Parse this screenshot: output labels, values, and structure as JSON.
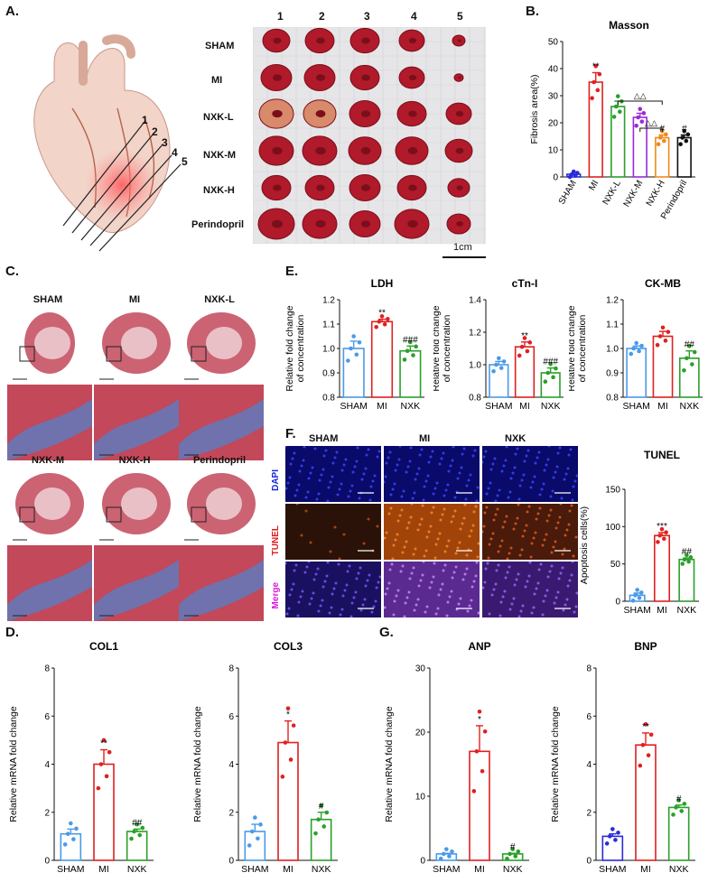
{
  "panels": {
    "A": {
      "letter": "A.",
      "slice_numbers": [
        "1",
        "2",
        "3",
        "4",
        "5"
      ],
      "col_numbers": [
        "1",
        "2",
        "3",
        "4",
        "5"
      ],
      "row_labels": [
        "SHAM",
        "MI",
        "NXK-L",
        "NXK-M",
        "NXK-H",
        "Perindopril"
      ],
      "scale": "1cm",
      "colors": {
        "tissue": "#b01a2a",
        "tissue_dark": "#7a0f1a",
        "mesh": "#e4e4e6",
        "heart": "#f2d4c8"
      }
    },
    "B": {
      "letter": "B."
    },
    "C": {
      "letter": "C.",
      "top_labels": [
        "SHAM",
        "MI",
        "NXK-L"
      ],
      "bottom_labels": [
        "NXK-M",
        "NXK-H",
        "Perindopril"
      ],
      "colors": {
        "muscle": "#c2485a",
        "collagen": "#5a7dc0"
      }
    },
    "D": {
      "letter": "D."
    },
    "E": {
      "letter": "E."
    },
    "F": {
      "letter": "F.",
      "col_labels": [
        "SHAM",
        "MI",
        "NXK"
      ],
      "row_labels": [
        "DAPI",
        "TUNEL",
        "Merge"
      ],
      "row_label_colors": [
        "#1a2ad8",
        "#e01a1a",
        "#d81ad8"
      ]
    },
    "G": {
      "letter": "G."
    }
  },
  "chart_data": [
    {
      "id": "masson",
      "type": "bar",
      "title": "Masson",
      "xlabel": "",
      "ylabel": "Fibrosis area(%)",
      "categories": [
        "SHAM",
        "MI",
        "NXK-L",
        "NXK-M",
        "NXK-H",
        "Perindopril"
      ],
      "values": [
        1,
        35,
        26,
        22,
        14.5,
        14.5
      ],
      "errors": [
        0,
        3.5,
        2,
        1.5,
        1,
        1
      ],
      "colors": [
        "#2a2ad8",
        "#e02020",
        "#2aa02a",
        "#9a2ad8",
        "#f08a1a",
        "#111111"
      ],
      "ylim": [
        0,
        50
      ],
      "yticks": [
        "0",
        "10",
        "20",
        "30",
        "40",
        "50"
      ],
      "annotations": [
        "",
        "**",
        "",
        "",
        "#",
        "#"
      ],
      "bracket_annotations": [
        "△△",
        "△△"
      ]
    },
    {
      "id": "ldh",
      "type": "bar",
      "title": "LDH",
      "xlabel": "",
      "ylabel": "Relative fold change of concentration",
      "categories": [
        "SHAM",
        "MI",
        "NXK"
      ],
      "values": [
        1.0,
        1.11,
        0.99
      ],
      "errors": [
        0.03,
        0.01,
        0.02
      ],
      "colors": [
        "#4a9ae8",
        "#e02020",
        "#2aa02a"
      ],
      "ylim": [
        0.8,
        1.2
      ],
      "yticks": [
        "0.8",
        "0.9",
        "1.0",
        "1.1",
        "1.2"
      ],
      "annotations": [
        "",
        "**",
        "###"
      ]
    },
    {
      "id": "ctni",
      "type": "bar",
      "title": "cTn-I",
      "xlabel": "",
      "ylabel": "Relative fold change of concentration",
      "categories": [
        "SHAM",
        "MI",
        "NXK"
      ],
      "values": [
        1.0,
        1.11,
        0.95
      ],
      "errors": [
        0.02,
        0.03,
        0.03
      ],
      "colors": [
        "#4a9ae8",
        "#e02020",
        "#2aa02a"
      ],
      "ylim": [
        0.8,
        1.4
      ],
      "yticks": [
        "0.8",
        "1.0",
        "1.2",
        "1.4"
      ],
      "annotations": [
        "",
        "**",
        "###"
      ]
    },
    {
      "id": "ckmb",
      "type": "bar",
      "title": "CK-MB",
      "xlabel": "",
      "ylabel": "Relative fold change of concentration",
      "categories": [
        "SHAM",
        "MI",
        "NXK"
      ],
      "values": [
        1.0,
        1.05,
        0.96
      ],
      "errors": [
        0.01,
        0.02,
        0.03
      ],
      "colors": [
        "#4a9ae8",
        "#e02020",
        "#2aa02a"
      ],
      "ylim": [
        0.8,
        1.2
      ],
      "yticks": [
        "0.8",
        "0.9",
        "1.0",
        "1.1",
        "1.2"
      ],
      "annotations": [
        "",
        "",
        "##"
      ]
    },
    {
      "id": "tunel",
      "type": "bar",
      "title": "TUNEL",
      "xlabel": "",
      "ylabel": "Apoptosis cells(%)",
      "categories": [
        "SHAM",
        "MI",
        "NXK"
      ],
      "values": [
        8,
        88,
        56
      ],
      "errors": [
        3,
        4,
        2
      ],
      "colors": [
        "#4a9ae8",
        "#e02020",
        "#2aa02a"
      ],
      "ylim": [
        0,
        150
      ],
      "yticks": [
        "0",
        "50",
        "100",
        "150"
      ],
      "annotations": [
        "",
        "***",
        "##"
      ]
    },
    {
      "id": "col1",
      "type": "bar",
      "title": "COL1",
      "xlabel": "",
      "ylabel": "Relative mRNA fold change",
      "categories": [
        "SHAM",
        "MI",
        "NXK"
      ],
      "values": [
        1.1,
        4.0,
        1.2
      ],
      "errors": [
        0.2,
        0.6,
        0.1
      ],
      "colors": [
        "#4a9ae8",
        "#e02020",
        "#2aa02a"
      ],
      "ylim": [
        0,
        8
      ],
      "yticks": [
        "0",
        "2",
        "4",
        "6",
        "8"
      ],
      "annotations": [
        "",
        "**",
        "##"
      ]
    },
    {
      "id": "col3",
      "type": "bar",
      "title": "COL3",
      "xlabel": "",
      "ylabel": "Relative mRNA fold change",
      "categories": [
        "SHAM",
        "MI",
        "NXK"
      ],
      "values": [
        1.2,
        4.9,
        1.7
      ],
      "errors": [
        0.3,
        0.9,
        0.3
      ],
      "colors": [
        "#4a9ae8",
        "#e02020",
        "#2aa02a"
      ],
      "ylim": [
        0,
        8
      ],
      "yticks": [
        "0",
        "2",
        "4",
        "6",
        "8"
      ],
      "annotations": [
        "",
        "*",
        "#"
      ]
    },
    {
      "id": "anp",
      "type": "bar",
      "title": "ANP",
      "xlabel": "",
      "ylabel": "Relative mRNA fold change",
      "categories": [
        "SHAM",
        "MI",
        "NXK"
      ],
      "values": [
        1.0,
        17.0,
        1.0
      ],
      "errors": [
        0.1,
        4.0,
        0.1
      ],
      "colors": [
        "#4a9ae8",
        "#e02020",
        "#2aa02a"
      ],
      "ylim": [
        0,
        30
      ],
      "yticks": [
        "0",
        "10",
        "20",
        "30"
      ],
      "annotations": [
        "",
        "*",
        "#"
      ]
    },
    {
      "id": "bnp",
      "type": "bar",
      "title": "BNP",
      "xlabel": "",
      "ylabel": "Relative mRNA fold change",
      "categories": [
        "SHAM",
        "MI",
        "NXK"
      ],
      "values": [
        1.0,
        4.8,
        2.2
      ],
      "errors": [
        0.1,
        0.5,
        0.1
      ],
      "colors": [
        "#2a2ad8",
        "#e02020",
        "#2aa02a"
      ],
      "ylim": [
        0,
        8
      ],
      "yticks": [
        "0",
        "2",
        "4",
        "6",
        "8"
      ],
      "annotations": [
        "",
        "**",
        "#"
      ]
    }
  ]
}
